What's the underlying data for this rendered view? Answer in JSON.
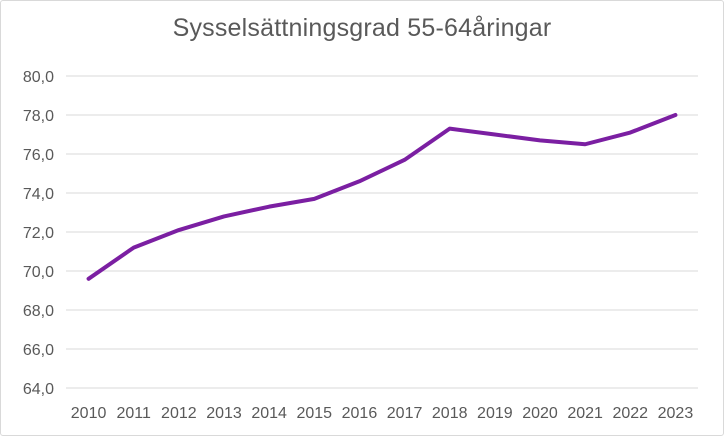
{
  "chart_data": {
    "type": "line",
    "title": "Sysselsättningsgrad 55-64åringar",
    "xlabel": "",
    "ylabel": "",
    "categories": [
      "2010",
      "2011",
      "2012",
      "2013",
      "2014",
      "2015",
      "2016",
      "2017",
      "2018",
      "2019",
      "2020",
      "2021",
      "2022",
      "2023"
    ],
    "series": [
      {
        "name": "Sysselsättningsgrad 55-64åringar",
        "color": "#7b1fa2",
        "values": [
          69.6,
          71.2,
          72.1,
          72.8,
          73.3,
          73.7,
          74.6,
          75.7,
          77.3,
          77.0,
          76.7,
          76.5,
          77.1,
          78.0
        ]
      }
    ],
    "ylim": [
      64,
      80
    ],
    "yticks": [
      "64,0",
      "66,0",
      "68,0",
      "70,0",
      "72,0",
      "74,0",
      "76,0",
      "78,0",
      "80,0"
    ],
    "grid": true,
    "legend": "none"
  },
  "colors": {
    "line": "#7b1fa2",
    "grid": "#d9d9d9",
    "text": "#595959"
  }
}
